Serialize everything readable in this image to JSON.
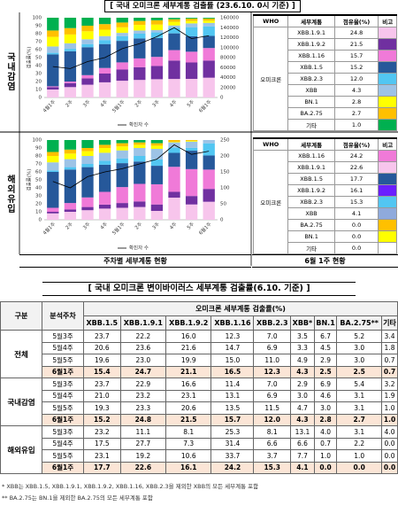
{
  "title": "[ 국내 오미크론 세부계통 검출률 (23.6.10. 0시 기준) ]",
  "chart_data": [
    {
      "type": "bar",
      "stacked": true,
      "label": "국내감염",
      "y_label": "검출률(%)",
      "grid": false,
      "categories": [
        "4월1주",
        "2주",
        "3주",
        "4주",
        "5월1주",
        "2주",
        "3주",
        "4주",
        "5주",
        "6월1주"
      ],
      "ylim": [
        0,
        100
      ],
      "yticks": [
        0,
        10,
        20,
        30,
        40,
        50,
        60,
        70,
        80,
        90,
        100
      ],
      "y2lim": [
        0,
        160000
      ],
      "y2ticks": [
        0,
        20000,
        40000,
        60000,
        80000,
        100000,
        120000,
        140000,
        160000
      ],
      "series": [
        {
          "name": "XBB.1.9.1",
          "color": "#f7c5ec",
          "values": [
            10,
            13,
            16,
            19,
            21,
            22,
            22.9,
            23.2,
            23.3,
            24.8
          ]
        },
        {
          "name": "XBB.1.9.2",
          "color": "#7030a0",
          "values": [
            3,
            5,
            8,
            11,
            14,
            16,
            16.6,
            23.1,
            20.6,
            21.5
          ]
        },
        {
          "name": "XBB.1.16",
          "color": "#f07ad8",
          "values": [
            1,
            2,
            4,
            7,
            9,
            11,
            11.4,
            13.1,
            13.5,
            15.7
          ]
        },
        {
          "name": "XBB.1.5",
          "color": "#26589a",
          "values": [
            40,
            38,
            35,
            30,
            27,
            25,
            23.7,
            21.0,
            19.3,
            15.2
          ]
        },
        {
          "name": "XBB.2.3",
          "color": "#52c6f2",
          "values": [
            2,
            3,
            4,
            5,
            6,
            6,
            7.0,
            6.9,
            11.5,
            12.0
          ]
        },
        {
          "name": "XBB",
          "color": "#9dc3e6",
          "values": [
            8,
            7,
            6,
            5,
            4,
            4,
            2.9,
            3.0,
            4.7,
            4.3
          ]
        },
        {
          "name": "BN.1",
          "color": "#ffff00",
          "values": [
            12,
            11,
            10,
            8,
            7,
            7,
            6.9,
            4.6,
            3.0,
            2.8
          ]
        },
        {
          "name": "BA.2.75",
          "color": "#ffc000",
          "values": [
            8,
            8,
            7,
            7,
            6,
            5,
            5.4,
            3.1,
            3.1,
            2.7
          ]
        },
        {
          "name": "기타",
          "color": "#00b050",
          "values": [
            16,
            13,
            10,
            8,
            6,
            4,
            3.2,
            1.9,
            1.0,
            1.0
          ]
        },
        {
          "name": "확진자 수",
          "type": "line",
          "axis": "y2",
          "color": "#000000",
          "values": [
            62000,
            58000,
            72000,
            80000,
            98000,
            108000,
            122000,
            140000,
            118000,
            124000
          ]
        }
      ]
    },
    {
      "type": "bar",
      "stacked": true,
      "label": "해외유입",
      "y_label": "검출률(%)",
      "grid": false,
      "categories": [
        "4월1주",
        "2주",
        "3주",
        "4주",
        "5월1주",
        "2주",
        "3주",
        "4주",
        "5주",
        "6월1주"
      ],
      "ylim": [
        0,
        100
      ],
      "yticks": [
        0,
        10,
        20,
        30,
        40,
        50,
        60,
        70,
        80,
        90,
        100
      ],
      "y2lim": [
        0,
        250
      ],
      "y2ticks": [
        0,
        50,
        100,
        150,
        200,
        250
      ],
      "series": [
        {
          "name": "XBB.1.9.1",
          "color": "#f7c5ec",
          "values": [
            8,
            10,
            12,
            14,
            15,
            16,
            11.1,
            27.7,
            19.2,
            22.6
          ]
        },
        {
          "name": "XBB.1.9.2",
          "color": "#7030a0",
          "values": [
            2,
            3,
            4,
            5,
            6,
            7,
            8.1,
            7.3,
            10.6,
            16.1
          ]
        },
        {
          "name": "XBB.1.16",
          "color": "#f07ad8",
          "values": [
            5,
            8,
            12,
            16,
            20,
            22,
            25.3,
            31.4,
            33.7,
            24.2
          ]
        },
        {
          "name": "XBB.1.5",
          "color": "#26589a",
          "values": [
            45,
            42,
            38,
            34,
            30,
            28,
            23.2,
            17.5,
            23.1,
            17.7
          ]
        },
        {
          "name": "XBB.2.3",
          "color": "#52c6f2",
          "values": [
            2,
            3,
            4,
            5,
            6,
            7,
            8.1,
            6.6,
            3.7,
            15.3
          ]
        },
        {
          "name": "XBB",
          "color": "#9dc3e6",
          "values": [
            10,
            10,
            10,
            10,
            10,
            10,
            13.1,
            6.6,
            7.7,
            4.1
          ]
        },
        {
          "name": "BN.1",
          "color": "#ffff00",
          "values": [
            8,
            7,
            6,
            6,
            5,
            4,
            4.0,
            0.7,
            1.0,
            0.0
          ]
        },
        {
          "name": "BA.2.75",
          "color": "#ffc000",
          "values": [
            5,
            5,
            4,
            4,
            4,
            3,
            3.1,
            2.2,
            1.0,
            0.0
          ]
        },
        {
          "name": "기타",
          "color": "#00b050",
          "values": [
            15,
            12,
            10,
            6,
            4,
            3,
            4.0,
            0.0,
            0.0,
            0.0
          ]
        },
        {
          "name": "확진자 수",
          "type": "line",
          "axis": "y2",
          "color": "#000000",
          "values": [
            120,
            100,
            135,
            150,
            160,
            175,
            190,
            235,
            205,
            215
          ]
        }
      ]
    }
  ],
  "legend_tables": [
    {
      "header": [
        "WHO",
        "세부계통",
        "점유율(%)",
        "비고"
      ],
      "who": "오미크론",
      "rows": [
        {
          "name": "XBB.1.9.1",
          "share": "24.8",
          "color": "#f7c5ec"
        },
        {
          "name": "XBB.1.9.2",
          "share": "21.5",
          "color": "#7030a0"
        },
        {
          "name": "XBB.1.16",
          "share": "15.7",
          "color": "#f07ad8"
        },
        {
          "name": "XBB.1.5",
          "share": "15.2",
          "color": "#26589a"
        },
        {
          "name": "XBB.2.3",
          "share": "12.0",
          "color": "#52c6f2"
        },
        {
          "name": "XBB",
          "share": "4.3",
          "color": "#9dc3e6"
        },
        {
          "name": "BN.1",
          "share": "2.8",
          "color": "#ffff00"
        },
        {
          "name": "BA.2.75",
          "share": "2.7",
          "color": "#ffc000"
        },
        {
          "name": "기타",
          "share": "1.0",
          "color": "#00b050"
        }
      ]
    },
    {
      "header": [
        "WHO",
        "세부계통",
        "점유율(%)",
        "비고"
      ],
      "who": "오미크론",
      "rows": [
        {
          "name": "XBB.1.16",
          "share": "24.2",
          "color": "#f07ad8"
        },
        {
          "name": "XBB.1.9.1",
          "share": "22.6",
          "color": "#f7c5ec"
        },
        {
          "name": "XBB.1.5",
          "share": "17.7",
          "color": "#26589a"
        },
        {
          "name": "XBB.1.9.2",
          "share": "16.1",
          "color": "#6a1fff"
        },
        {
          "name": "XBB.2.3",
          "share": "15.3",
          "color": "#52c6f2"
        },
        {
          "name": "XBB",
          "share": "4.1",
          "color": "#8faadc"
        },
        {
          "name": "BA.2.75",
          "share": "0.0",
          "color": "#ffc000"
        },
        {
          "name": "BN.1",
          "share": "0.0",
          "color": "#ffff00"
        },
        {
          "name": "기타",
          "share": "0.0",
          "color": "#ffffff"
        }
      ]
    }
  ],
  "captions": [
    "주차별 세부계통 현황",
    "6월 1주 현황"
  ],
  "table": {
    "title": "[ 국내 오미크론 변이바이러스 세부계통 검출률(6.10. 기준) ]",
    "header": [
      "구분",
      "분석주차",
      "오미크론 세부계통 검출률(%)"
    ],
    "columns": [
      "XBB.1.5",
      "XBB.1.9.1",
      "XBB.1.9.2",
      "XBB.1.16",
      "XBB.2.3",
      "XBB*",
      "BN.1",
      "BA.2.75**",
      "기타"
    ],
    "groups": [
      {
        "name": "전체",
        "rows": [
          {
            "week": "5월3주",
            "values": [
              "23.7",
              "22.2",
              "16.0",
              "12.3",
              "7.0",
              "3.5",
              "6.7",
              "5.2",
              "3.4"
            ]
          },
          {
            "week": "5월4주",
            "values": [
              "20.6",
              "23.6",
              "21.6",
              "14.7",
              "6.9",
              "3.3",
              "4.5",
              "3.0",
              "1.8"
            ]
          },
          {
            "week": "5월5주",
            "values": [
              "19.6",
              "23.0",
              "19.9",
              "15.0",
              "11.0",
              "4.9",
              "2.9",
              "3.0",
              "0.7"
            ]
          },
          {
            "week": "6월1주",
            "values": [
              "15.4",
              "24.7",
              "21.1",
              "16.5",
              "12.3",
              "4.3",
              "2.5",
              "2.5",
              "0.7"
            ]
          }
        ]
      },
      {
        "name": "국내감염",
        "rows": [
          {
            "week": "5월3주",
            "values": [
              "23.7",
              "22.9",
              "16.6",
              "11.4",
              "7.0",
              "2.9",
              "6.9",
              "5.4",
              "3.2"
            ]
          },
          {
            "week": "5월4주",
            "values": [
              "21.0",
              "23.2",
              "23.1",
              "13.1",
              "6.9",
              "3.0",
              "4.6",
              "3.1",
              "1.9"
            ]
          },
          {
            "week": "5월5주",
            "values": [
              "19.3",
              "23.3",
              "20.6",
              "13.5",
              "11.5",
              "4.7",
              "3.0",
              "3.1",
              "1.0"
            ]
          },
          {
            "week": "6월1주",
            "values": [
              "15.2",
              "24.8",
              "21.5",
              "15.7",
              "12.0",
              "4.3",
              "2.8",
              "2.7",
              "1.0"
            ]
          }
        ]
      },
      {
        "name": "해외유입",
        "rows": [
          {
            "week": "5월3주",
            "values": [
              "23.2",
              "11.1",
              "8.1",
              "25.3",
              "8.1",
              "13.1",
              "4.0",
              "3.1",
              "4.0"
            ]
          },
          {
            "week": "5월4주",
            "values": [
              "17.5",
              "27.7",
              "7.3",
              "31.4",
              "6.6",
              "6.6",
              "0.7",
              "2.2",
              "0.0"
            ]
          },
          {
            "week": "5월5주",
            "values": [
              "23.1",
              "19.2",
              "10.6",
              "33.7",
              "3.7",
              "7.7",
              "1.0",
              "1.0",
              "0.0"
            ]
          },
          {
            "week": "6월1주",
            "values": [
              "17.7",
              "22.6",
              "16.1",
              "24.2",
              "15.3",
              "4.1",
              "0.0",
              "0.0",
              "0.0"
            ]
          }
        ]
      }
    ]
  },
  "notes": [
    "* XBB는 XBB.1.5, XBB.1.9.1, XBB.1.9.2, XBB.1.16, XBB.2.3을 제외한 XBB의 모든 세부계통 포함",
    "** BA.2.75는 BN.1을 제외한 BA.2.75의 모든 세부계통 포함"
  ]
}
